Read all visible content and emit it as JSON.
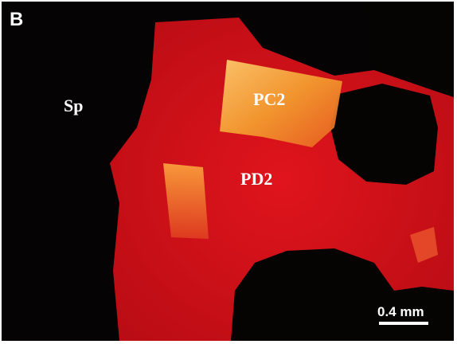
{
  "panel_label": "B",
  "labels": [
    "Sp",
    "PC2",
    "PD2"
  ],
  "scale_bar": "0.4 mm"
}
